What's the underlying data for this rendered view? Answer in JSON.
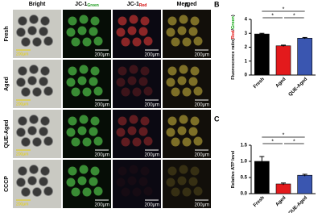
{
  "panel_a": {
    "label": "A",
    "columns": [
      {
        "text": "Bright"
      },
      {
        "text": "JC-1",
        "sub": "Green"
      },
      {
        "text": "JC-1",
        "sub": "Red"
      },
      {
        "text": "Merged"
      }
    ],
    "rows": [
      "Fresh",
      "Aged",
      "QUE-Aged",
      "CCCP"
    ],
    "scale_bar": "200μm"
  },
  "chart_data": [
    {
      "type": "bar",
      "panel_label": "B",
      "ylabel_parts": [
        {
          "text": "Fluorescence ratio(",
          "color": "#000000"
        },
        {
          "text": "Red",
          "color": "#e00000"
        },
        {
          "text": "/",
          "color": "#000000"
        },
        {
          "text": "Green",
          "color": "#00a000"
        },
        {
          "text": ")",
          "color": "#000000"
        }
      ],
      "categories": [
        "Fresh",
        "Aged",
        "QUE-Aged"
      ],
      "values": [
        2.95,
        2.1,
        2.65
      ],
      "errors": [
        0.05,
        0.05,
        0.05
      ],
      "colors": [
        "#000000",
        "#e31a1c",
        "#3a56b0"
      ],
      "ylim": [
        0,
        4
      ],
      "yticks": [
        0,
        1,
        2,
        3,
        4
      ],
      "comparisons": [
        {
          "pair": [
            "Fresh",
            "QUE-Aged"
          ],
          "label": "*"
        },
        {
          "pair": [
            "Fresh",
            "Aged"
          ],
          "label": "*"
        },
        {
          "pair": [
            "Aged",
            "QUE-Aged"
          ],
          "label": "*"
        }
      ]
    },
    {
      "type": "bar",
      "panel_label": "C",
      "ylabel_parts": [
        {
          "text": "Relative ATP level",
          "color": "#000000"
        }
      ],
      "categories": [
        "Fresh",
        "Aged",
        "QUE-Aged"
      ],
      "values": [
        1.0,
        0.3,
        0.57
      ],
      "errors": [
        0.15,
        0.03,
        0.03
      ],
      "colors": [
        "#000000",
        "#e31a1c",
        "#3a56b0"
      ],
      "ylim": [
        0,
        1.5
      ],
      "yticks": [
        {
          "value": 0,
          "label": "0.0"
        },
        {
          "value": 0.5,
          "label": "0.5"
        },
        {
          "value": 1,
          "label": "1.0"
        },
        {
          "value": 1.5,
          "label": "1.5"
        }
      ],
      "comparisons": [
        {
          "pair": [
            "Fresh",
            "QUE-Aged"
          ],
          "label": "*"
        },
        {
          "pair": [
            "Fresh",
            "Aged"
          ],
          "label": "*"
        },
        {
          "pair": [
            "Aged",
            "QUE-Aged"
          ],
          "label": "*"
        }
      ]
    }
  ]
}
